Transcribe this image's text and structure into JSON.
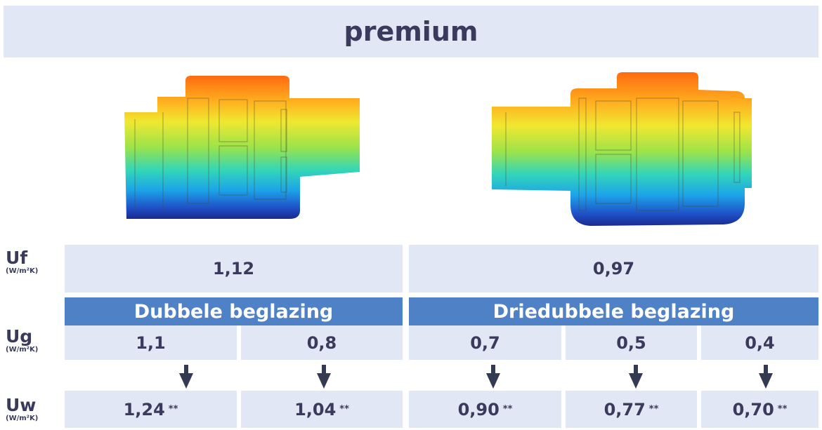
{
  "title": "premium",
  "rows": {
    "uf": {
      "symbol": "Uf",
      "unit": "(W/m²K)"
    },
    "ug": {
      "symbol": "Ug",
      "unit": "(W/m²K)"
    },
    "uw": {
      "symbol": "Uw",
      "unit": "(W/m²K)"
    }
  },
  "uf_values": [
    "1,12",
    "0,97"
  ],
  "glazing": [
    "Dubbele beglazing",
    "Driedubbele beglazing"
  ],
  "ug_values": [
    "1,1",
    "0,8",
    "0,7",
    "0,5",
    "0,4"
  ],
  "uw_values": [
    "1,24",
    "1,04",
    "0,90",
    "0,77",
    "0,70"
  ],
  "uw_note": "**",
  "images": [
    "thermal-profile-left",
    "thermal-profile-right"
  ],
  "colors": {
    "header_bg": "#e1e7f4",
    "band_bg": "#4f81c7",
    "text": "#3a3a5c"
  }
}
